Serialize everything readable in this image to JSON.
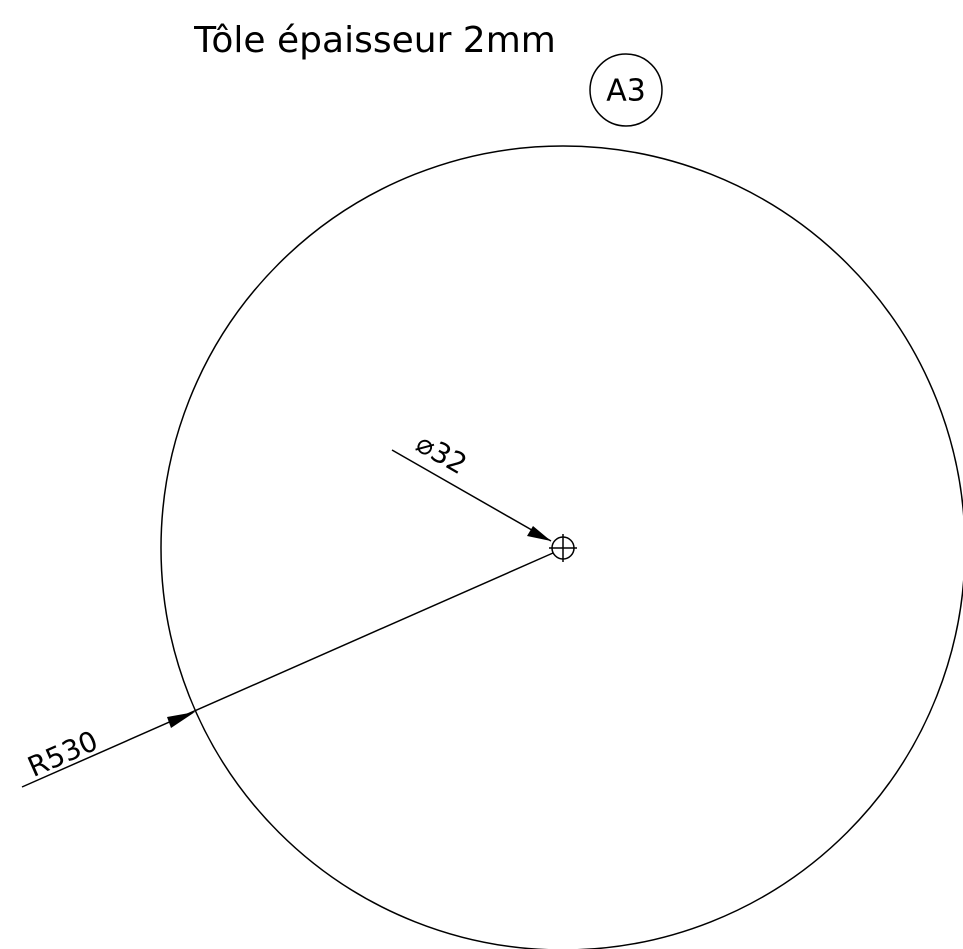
{
  "title": "Tôle épaisseur 2mm",
  "balloon": "A3",
  "dimensions": {
    "radius": "R530",
    "diameter": "⌀32"
  }
}
